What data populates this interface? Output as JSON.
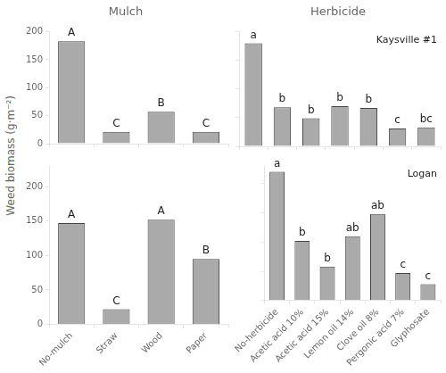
{
  "chart_data": [
    {
      "type": "bar",
      "title": "Mulch",
      "categories": [
        "No-mulch",
        "Straw",
        "Wood",
        "Paper"
      ],
      "values": [
        183,
        21,
        57,
        21
      ],
      "annotations": [
        {
          "x": "No-mulch",
          "text": "A"
        },
        {
          "x": "Straw",
          "text": "C"
        },
        {
          "x": "Wood",
          "text": "B"
        },
        {
          "x": "Paper",
          "text": "C"
        }
      ],
      "color": "#aaaaaa",
      "ylabel": "Weed biomass (g·m⁻²)",
      "ylim": [
        0,
        200
      ],
      "yticks": [
        0,
        50,
        100,
        150,
        200
      ],
      "grid": false,
      "tick_labels": "y"
    },
    {
      "type": "bar",
      "title": "Herbicide",
      "subtitle": "Kaysville #1",
      "categories": [
        "No-herbicide",
        "Acetic acid 10%",
        "Acetic acid 15%",
        "Lemon oil 14%",
        "Clove oil 8%",
        "Pergonic acid 7%",
        "Glyphosate"
      ],
      "values": [
        180,
        68,
        49,
        70,
        67,
        31,
        33
      ],
      "annotations": [
        {
          "x": "No-herbicide",
          "text": "a"
        },
        {
          "x": "Acetic acid 10%",
          "text": "b"
        },
        {
          "x": "Acetic acid 15%",
          "text": "b"
        },
        {
          "x": "Lemon oil 14%",
          "text": "b"
        },
        {
          "x": "Clove oil 8%",
          "text": "b"
        },
        {
          "x": "Pergonic acid 7%",
          "text": "c"
        },
        {
          "x": "Glyphosate",
          "text": "bc"
        }
      ],
      "color": "#aaaaaa",
      "ylim": [
        0,
        200
      ],
      "yticks": [
        0,
        50,
        100,
        150,
        200
      ],
      "grid": false,
      "tick_labels": false
    },
    {
      "type": "bar",
      "categories": [
        "No-mulch",
        "Straw",
        "Wood",
        "Paper"
      ],
      "values": [
        147,
        22,
        152,
        95
      ],
      "annotations": [
        {
          "x": "No-mulch",
          "text": "A"
        },
        {
          "x": "Straw",
          "text": "C"
        },
        {
          "x": "Wood",
          "text": "A"
        },
        {
          "x": "Paper",
          "text": "B"
        }
      ],
      "color": "#aaaaaa",
      "ylim": [
        0,
        230
      ],
      "yticks": [
        0,
        50,
        100,
        150,
        200
      ],
      "grid": false
    },
    {
      "type": "bar",
      "subtitle": "Logan",
      "categories": [
        "No-herbicide",
        "Acetic acid 10%",
        "Acetic acid 15%",
        "Lemon oil 14%",
        "Clove oil 8%",
        "Pergonic acid 7%",
        "Glyphosate"
      ],
      "values": [
        220,
        102,
        58,
        110,
        148,
        47,
        28
      ],
      "annotations": [
        {
          "x": "No-herbicide",
          "text": "a"
        },
        {
          "x": "Acetic acid 10%",
          "text": "b"
        },
        {
          "x": "Acetic acid 15%",
          "text": "b"
        },
        {
          "x": "Lemon oil 14%",
          "text": "ab"
        },
        {
          "x": "Clove oil 8%",
          "text": "ab"
        },
        {
          "x": "Pergonic acid 7%",
          "text": "c"
        },
        {
          "x": "Glyphosate",
          "text": "c"
        }
      ],
      "color": "#aaaaaa",
      "ylim": [
        0,
        230
      ],
      "yticks": [
        0,
        50,
        100,
        150,
        200
      ],
      "grid": false,
      "tick_labels": "x"
    }
  ]
}
